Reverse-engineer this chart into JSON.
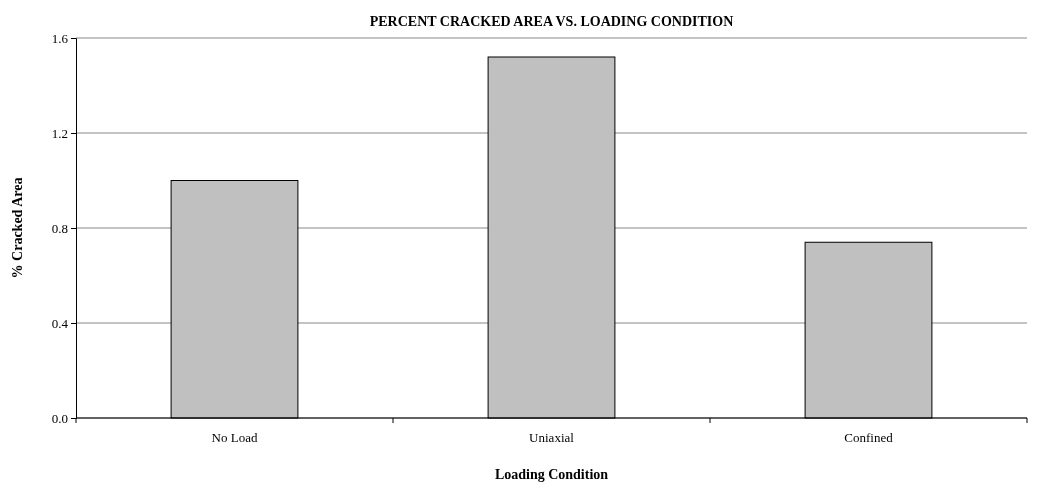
{
  "chart_data": {
    "type": "bar",
    "title": "PERCENT CRACKED AREA VS. LOADING CONDITION",
    "xlabel": "Loading Condition",
    "ylabel": "% Cracked Area",
    "categories": [
      "No Load",
      "Uniaxial",
      "Confined"
    ],
    "values": [
      1.0,
      1.52,
      0.74
    ],
    "color": "#c0c0c0",
    "ylim": [
      0,
      1.6
    ],
    "yticks": [
      {
        "value": 0,
        "label": "0.0"
      },
      {
        "value": 0.4,
        "label": "0.4"
      },
      {
        "value": 0.8,
        "label": "0.8"
      },
      {
        "value": 1.2,
        "label": "1.2"
      },
      {
        "value": 1.6,
        "label": "1.6"
      }
    ],
    "grid": "y"
  }
}
